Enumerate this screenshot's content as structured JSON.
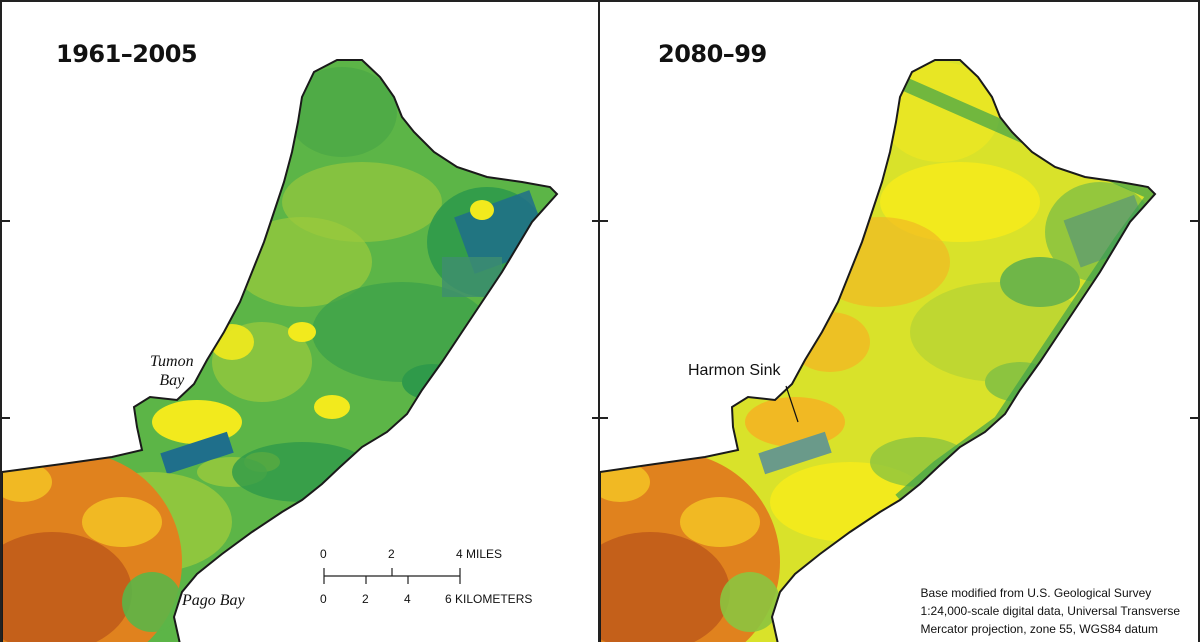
{
  "left_panel": {
    "period_label": "1961–2005",
    "place_labels": {
      "tumon_bay_line1": "Tumon",
      "tumon_bay_line2": "Bay",
      "pago_bay": "Pago Bay"
    },
    "scale_bar": {
      "miles_ticks": [
        "0",
        "2",
        "4 MILES"
      ],
      "km_ticks": [
        "0",
        "2",
        "4",
        "6 KILOMETERS"
      ]
    }
  },
  "right_panel": {
    "period_label": "2080–99",
    "callout_label": "Harmon Sink",
    "credit_lines": [
      "Base modified from U.S. Geological Survey",
      "1:24,000-scale digital data, Universal Transverse",
      "Mercator projection, zone 55, WGS84 datum"
    ]
  },
  "colors": {
    "ocean": "#ffffff",
    "coastline": "#1a1a1a",
    "wet_blue": "#1f6f8b",
    "dark_green": "#2f9a4a",
    "green": "#5cb547",
    "light_green": "#9bcb3c",
    "yellow": "#f2ea1d",
    "orange_yellow": "#f1b923",
    "orange": "#e0821e",
    "dark_orange": "#c4601a"
  }
}
